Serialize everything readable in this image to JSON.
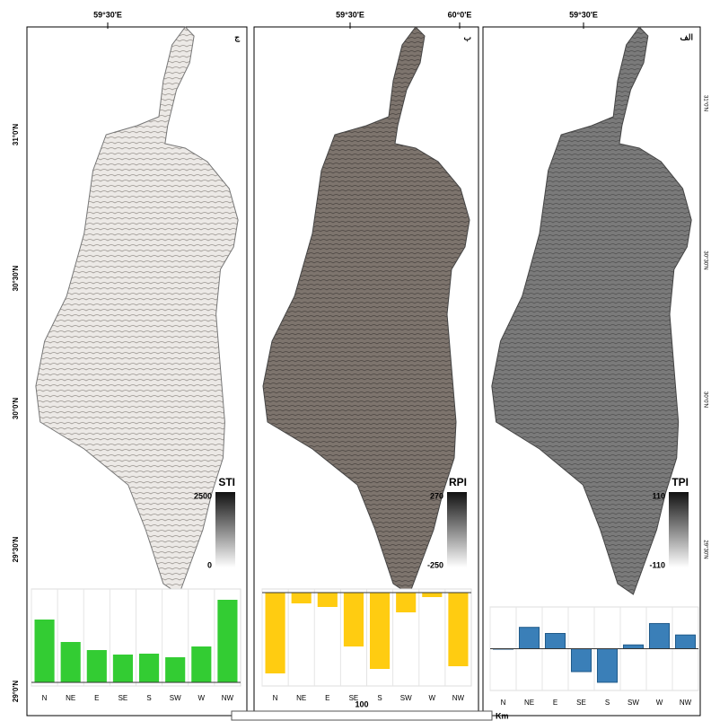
{
  "map": {
    "panel_labels": [
      "ج",
      "ب",
      "الف"
    ],
    "top_labels": [
      "59°30'E",
      "59°30'E",
      "60°0'E",
      "59°30'E"
    ],
    "left_labels": [
      "31°0'N",
      "30°30'N",
      "30°0'N",
      "29°30'N",
      "29°0'N"
    ],
    "right_labels": [
      "31°0'N",
      "30°30'N",
      "30°0'N",
      "29°30'N"
    ],
    "legends": [
      {
        "title": "STI",
        "max": 2500,
        "min": 0
      },
      {
        "title": "RPI",
        "max": 270,
        "min": -250
      },
      {
        "title": "TPI",
        "max": 110,
        "min": -110
      }
    ],
    "scale_value": 100,
    "scale_unit": "Km"
  },
  "chart_data": [
    {
      "type": "bar",
      "categories": [
        "N",
        "NE",
        "E",
        "SE",
        "S",
        "SW",
        "W",
        "NW"
      ],
      "values": [
        70,
        45,
        36,
        31,
        32,
        28,
        40,
        92
      ],
      "color": "#33cc33",
      "ylim": [
        0,
        100
      ]
    },
    {
      "type": "bar",
      "categories": [
        "N",
        "NE",
        "E",
        "SE",
        "S",
        "SW",
        "W",
        "NW"
      ],
      "values": [
        -90,
        -12,
        -16,
        -60,
        -85,
        -22,
        -5,
        -82
      ],
      "color": "#ffcc11",
      "ylim": [
        -100,
        0
      ]
    },
    {
      "type": "bar",
      "categories": [
        "N",
        "NE",
        "E",
        "SE",
        "S",
        "SW",
        "W",
        "NW"
      ],
      "values": [
        0,
        28,
        20,
        -30,
        -44,
        5,
        33,
        18
      ],
      "color": "#3a7fb8",
      "ylim": [
        -50,
        50
      ]
    }
  ]
}
